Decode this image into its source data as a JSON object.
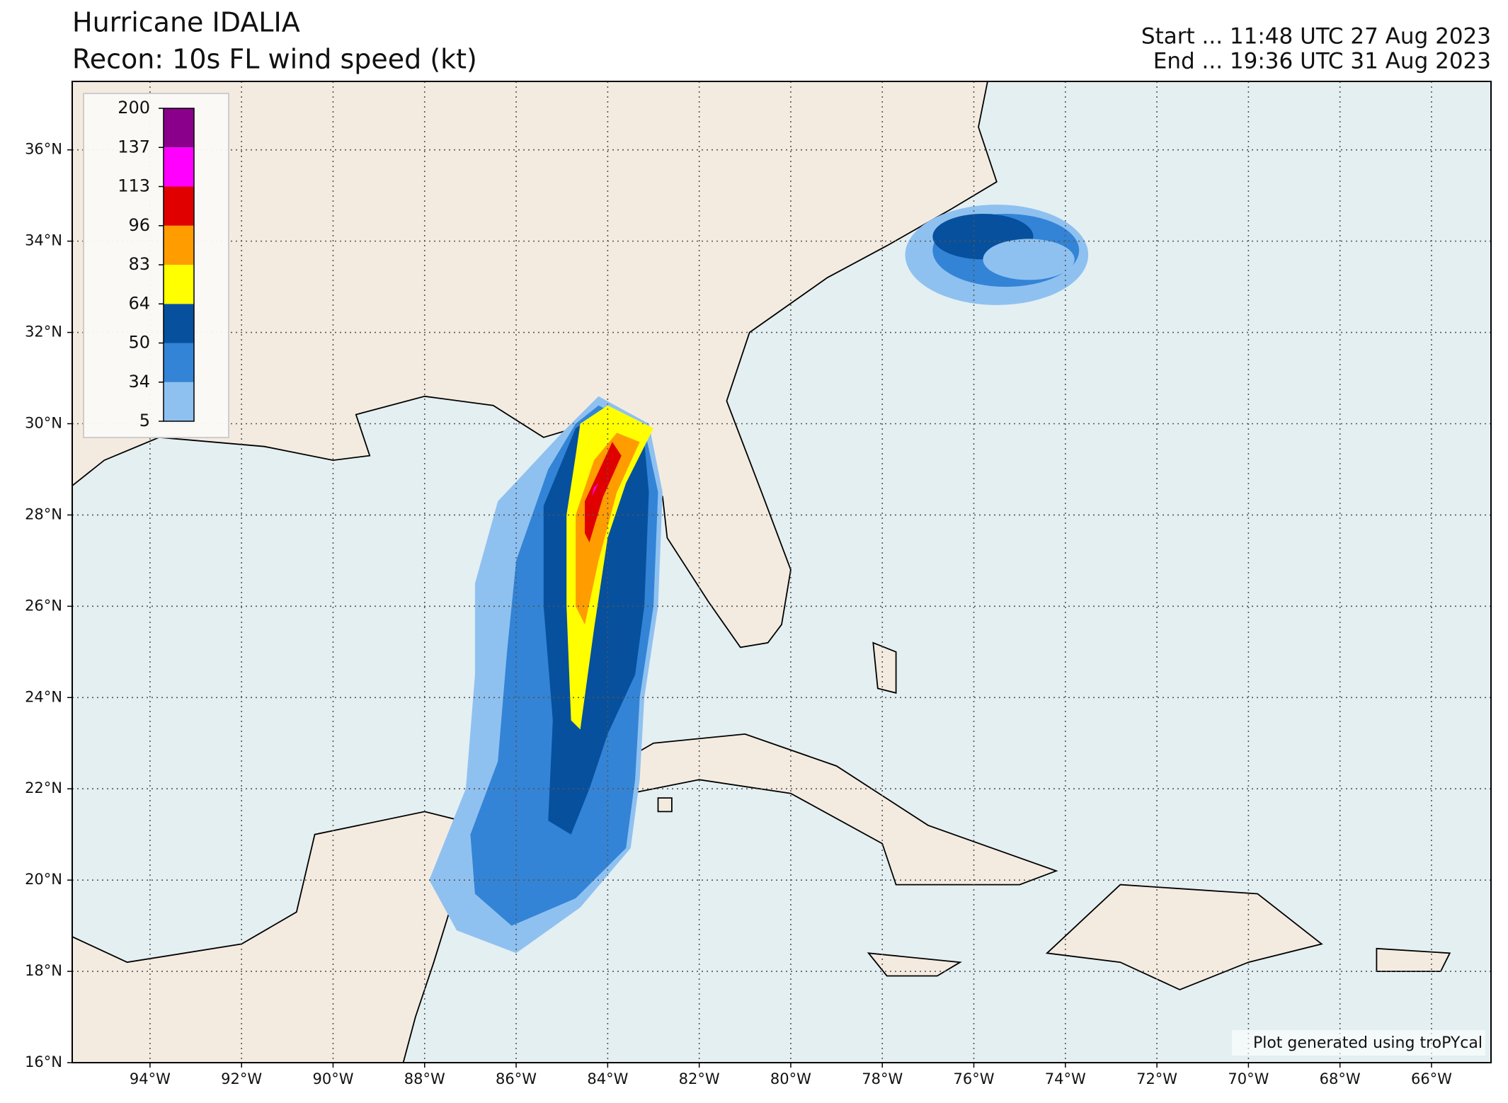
{
  "header": {
    "title": "Hurricane IDALIA",
    "subtitle": "Recon: 10s FL wind speed (kt)",
    "start": "Start ... 11:48 UTC 27 Aug 2023",
    "end": "End ... 19:36 UTC 31 Aug 2023"
  },
  "map": {
    "lonlim": [
      -95.7,
      -64.7
    ],
    "latlim": [
      16,
      37.5
    ],
    "lon_ticks": [
      {
        "value": -94,
        "label": "94°W"
      },
      {
        "value": -92,
        "label": "92°W"
      },
      {
        "value": -90,
        "label": "90°W"
      },
      {
        "value": -88,
        "label": "88°W"
      },
      {
        "value": -86,
        "label": "86°W"
      },
      {
        "value": -84,
        "label": "84°W"
      },
      {
        "value": -82,
        "label": "82°W"
      },
      {
        "value": -80,
        "label": "80°W"
      },
      {
        "value": -78,
        "label": "78°W"
      },
      {
        "value": -76,
        "label": "76°W"
      },
      {
        "value": -74,
        "label": "74°W"
      },
      {
        "value": -72,
        "label": "72°W"
      },
      {
        "value": -70,
        "label": "70°W"
      },
      {
        "value": -68,
        "label": "68°W"
      },
      {
        "value": -66,
        "label": "66°W"
      }
    ],
    "lat_ticks": [
      {
        "value": 16,
        "label": "16°N"
      },
      {
        "value": 18,
        "label": "18°N"
      },
      {
        "value": 20,
        "label": "20°N"
      },
      {
        "value": 22,
        "label": "22°N"
      },
      {
        "value": 24,
        "label": "24°N"
      },
      {
        "value": 26,
        "label": "26°N"
      },
      {
        "value": 28,
        "label": "28°N"
      },
      {
        "value": 30,
        "label": "30°N"
      },
      {
        "value": 32,
        "label": "32°N"
      },
      {
        "value": 34,
        "label": "34°N"
      },
      {
        "value": 36,
        "label": "36°N"
      }
    ]
  },
  "colorbar": {
    "levels": [
      5,
      34,
      50,
      64,
      83,
      96,
      113,
      137,
      200
    ],
    "colors": [
      "#8fc1f0",
      "#3384d6",
      "#07509d",
      "#ffff00",
      "#ff9c00",
      "#e00000",
      "#ff00ff",
      "#8b008b"
    ]
  },
  "footer": "Plot generated using troPYcal"
}
